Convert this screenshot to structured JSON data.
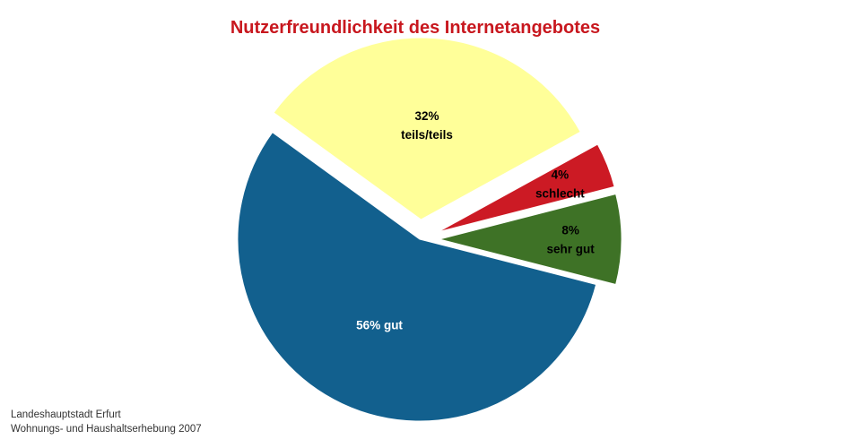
{
  "colors": {
    "title": "#C8171E",
    "sehr_gut": "#3E7226",
    "gut": "#12608E",
    "teils_teils": "#FFFF99",
    "schlecht": "#CC1A24"
  },
  "chart_data": {
    "type": "pie",
    "title": "Nutzerfreundlichkeit des Internetangebotes",
    "slices": [
      {
        "name": "sehr gut",
        "value": 8,
        "color": "#3E7226",
        "exploded": true,
        "lines": [
          "8%",
          "sehr gut"
        ],
        "text_color": "#000000"
      },
      {
        "name": "gut",
        "value": 56,
        "color": "#12608E",
        "exploded": false,
        "lines": [
          "56% gut"
        ],
        "text_color": "#ffffff"
      },
      {
        "name": "teils/teils",
        "value": 32,
        "color": "#FFFF99",
        "exploded": true,
        "lines": [
          "32%",
          "teils/teils"
        ],
        "text_color": "#000000"
      },
      {
        "name": "schlecht",
        "value": 4,
        "color": "#CC1A24",
        "exploded": true,
        "lines": [
          "4%",
          "schlecht"
        ],
        "text_color": "#000000"
      }
    ]
  },
  "source": {
    "line1": "Landeshauptstadt Erfurt",
    "line2": "Wohnungs- und Haushaltserhebung 2007"
  }
}
